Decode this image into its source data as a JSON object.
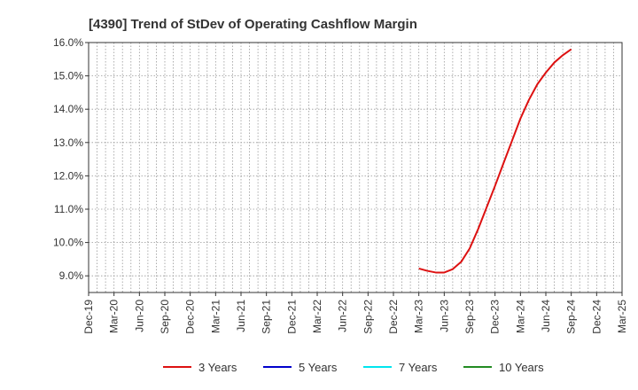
{
  "chart_data": {
    "type": "line",
    "title": "[4390]  Trend of StDev of Operating Cashflow Margin",
    "xlabel": "",
    "ylabel": "",
    "ylim": [
      8.5,
      16.0
    ],
    "y_ticks": [
      9.0,
      10.0,
      11.0,
      12.0,
      13.0,
      14.0,
      15.0,
      16.0
    ],
    "y_tick_labels": [
      "9.0%",
      "10.0%",
      "11.0%",
      "12.0%",
      "13.0%",
      "14.0%",
      "15.0%",
      "16.0%"
    ],
    "x_tick_labels": [
      "Dec-19",
      "Mar-20",
      "Jun-20",
      "Sep-20",
      "Dec-20",
      "Mar-21",
      "Jun-21",
      "Sep-21",
      "Dec-21",
      "Mar-22",
      "Jun-22",
      "Sep-22",
      "Dec-22",
      "Mar-23",
      "Jun-23",
      "Sep-23",
      "Dec-23",
      "Mar-24",
      "Jun-24",
      "Sep-24",
      "Dec-24",
      "Mar-25"
    ],
    "grid": true,
    "legend_position": "bottom",
    "series": [
      {
        "name": "3 Years",
        "color": "#dd1111",
        "x": [
          "Mar-23",
          "Apr-23",
          "May-23",
          "Jun-23",
          "Jul-23",
          "Aug-23",
          "Sep-23",
          "Oct-23",
          "Nov-23",
          "Dec-23",
          "Jan-24",
          "Feb-24",
          "Mar-24",
          "Apr-24",
          "May-24",
          "Jun-24",
          "Jul-24",
          "Aug-24",
          "Sep-24"
        ],
        "values": [
          9.22,
          9.15,
          9.1,
          9.1,
          9.2,
          9.42,
          9.82,
          10.4,
          11.05,
          11.7,
          12.38,
          13.05,
          13.72,
          14.28,
          14.75,
          15.1,
          15.4,
          15.62,
          15.8
        ]
      },
      {
        "name": "5 Years",
        "color": "#0000cc",
        "x": [],
        "values": []
      },
      {
        "name": "7 Years",
        "color": "#00e5ee",
        "x": [],
        "values": []
      },
      {
        "name": "10 Years",
        "color": "#228b22",
        "x": [],
        "values": []
      }
    ]
  }
}
